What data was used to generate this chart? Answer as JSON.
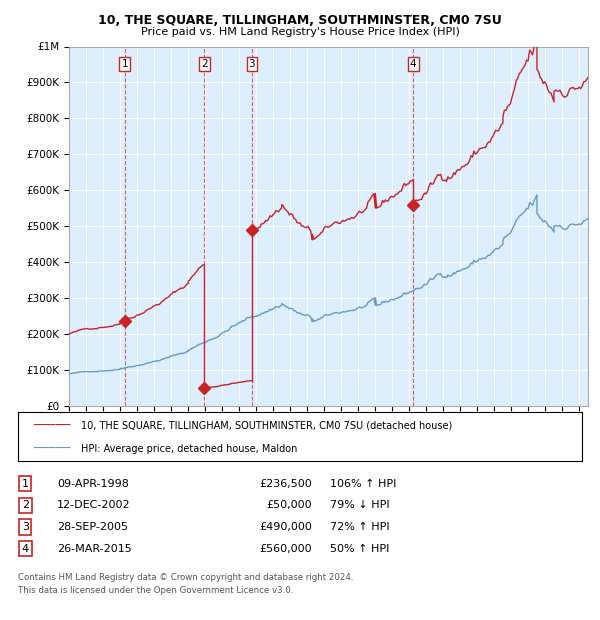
{
  "title1": "10, THE SQUARE, TILLINGHAM, SOUTHMINSTER, CM0 7SU",
  "title2": "Price paid vs. HM Land Registry's House Price Index (HPI)",
  "plot_bg_color": "#ddeeff",
  "ylim": [
    0,
    1000000
  ],
  "yticks": [
    0,
    100000,
    200000,
    300000,
    400000,
    500000,
    600000,
    700000,
    800000,
    900000,
    1000000
  ],
  "ytick_labels": [
    "£0",
    "£100K",
    "£200K",
    "£300K",
    "£400K",
    "£500K",
    "£600K",
    "£700K",
    "£800K",
    "£900K",
    "£1M"
  ],
  "xlim_start": 1995.0,
  "xlim_end": 2025.5,
  "hpi_color": "#6699cc",
  "price_color": "#cc2222",
  "transactions": [
    {
      "num": 1,
      "year": 1998.27,
      "price": 236500,
      "date": "09-APR-1998",
      "pct": "106%",
      "dir": "↑"
    },
    {
      "num": 2,
      "year": 2002.95,
      "price": 50000,
      "date": "12-DEC-2002",
      "pct": "79%",
      "dir": "↓"
    },
    {
      "num": 3,
      "year": 2005.75,
      "price": 490000,
      "date": "28-SEP-2005",
      "pct": "72%",
      "dir": "↑"
    },
    {
      "num": 4,
      "year": 2015.23,
      "price": 560000,
      "date": "26-MAR-2015",
      "pct": "50%",
      "dir": "↑"
    }
  ],
  "legend_label_price": "10, THE SQUARE, TILLINGHAM, SOUTHMINSTER, CM0 7SU (detached house)",
  "legend_label_hpi": "HPI: Average price, detached house, Maldon",
  "footer1": "Contains HM Land Registry data © Crown copyright and database right 2024.",
  "footer2": "This data is licensed under the Open Government Licence v3.0."
}
